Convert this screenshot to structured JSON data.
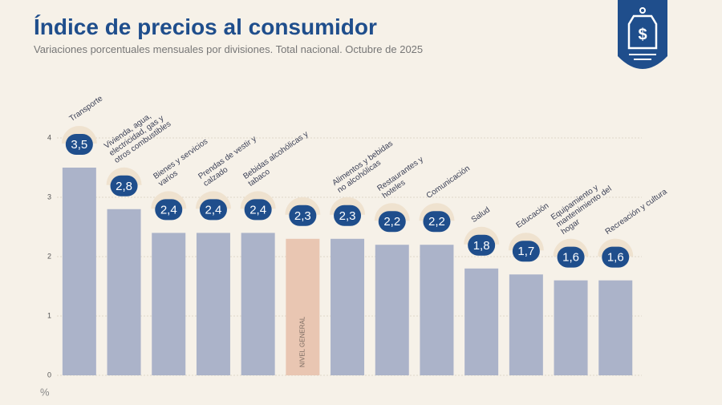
{
  "chart_data": {
    "type": "bar",
    "title": "Índice de precios al consumidor",
    "subtitle": "Variaciones porcentuales mensuales por divisiones. Total nacional. Octubre de 2025",
    "y_label": "%",
    "categories": [
      "Transporte",
      "Vivienda, agua, electricidad, gas y otros combustibles",
      "Bienes y servicios varios",
      "Prendas de vestir y calzado",
      "Bebidas alcohólicas y tabaco",
      "NIVEL GENERAL",
      "Alimentos y bebidas no alcohólicas",
      "Restaurantes y hoteles",
      "Comunicación",
      "Salud",
      "Educación",
      "Equipamiento y mantenimiento del hogar",
      "Recreación y cultura"
    ],
    "values": [
      3.5,
      2.8,
      2.4,
      2.4,
      2.4,
      2.3,
      2.3,
      2.2,
      2.2,
      1.8,
      1.7,
      1.6,
      1.6
    ],
    "value_labels": [
      "3,5",
      "2,8",
      "2,4",
      "2,4",
      "2,4",
      "2,3",
      "2,3",
      "2,2",
      "2,2",
      "1,8",
      "1,7",
      "1,6",
      "1,6"
    ],
    "colors": [
      "#abb3c9",
      "#abb3c9",
      "#abb3c9",
      "#abb3c9",
      "#abb3c9",
      "#e9c6b2",
      "#abb3c9",
      "#abb3c9",
      "#abb3c9",
      "#abb3c9",
      "#abb3c9",
      "#abb3c9",
      "#abb3c9"
    ],
    "ylim": [
      0,
      4
    ],
    "yticks": [
      0,
      1,
      2,
      3,
      4
    ],
    "grid": true
  }
}
